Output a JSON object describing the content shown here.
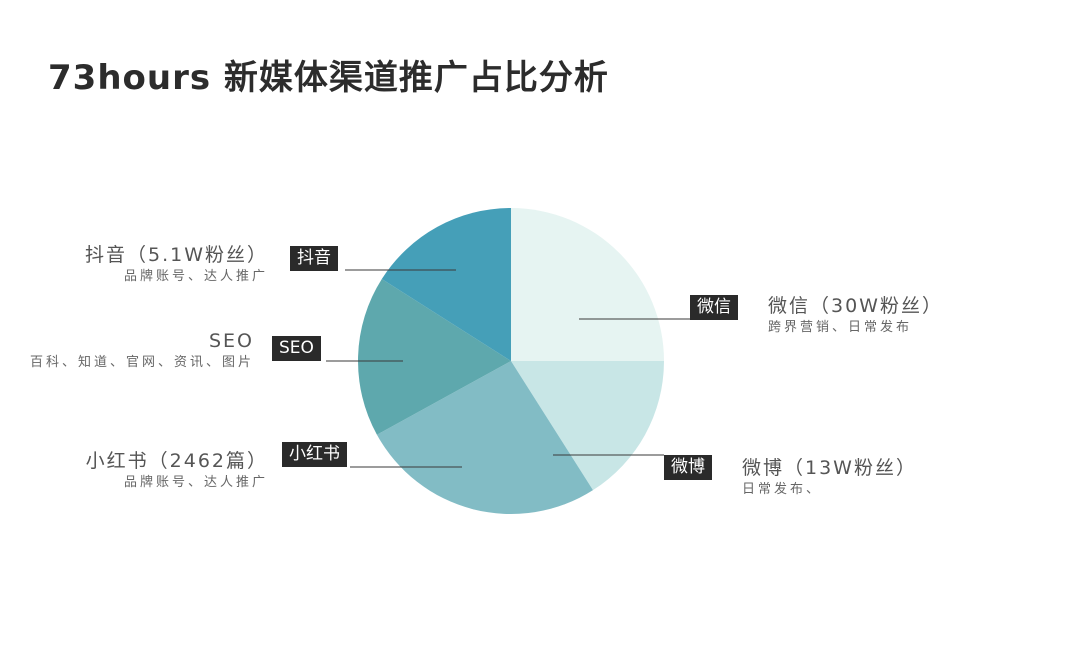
{
  "page": {
    "title": "73hours 新媒体渠道推广占比分析"
  },
  "chart_data": {
    "type": "pie",
    "title": "73hours 新媒体渠道推广占比分析",
    "start_angle_deg": 0,
    "direction": "clockwise",
    "slices": [
      {
        "label": "微信",
        "value": 25,
        "color": "#e6f4f2",
        "name": "微信（30W粉丝）",
        "note": "跨界营销、日常发布"
      },
      {
        "label": "微博",
        "value": 16,
        "color": "#c8e6e6",
        "name": "微博（13W粉丝）",
        "note": "日常发布、"
      },
      {
        "label": "小红书",
        "value": 26,
        "color": "#82bcc5",
        "name": "小红书（2462篇）",
        "note": "品牌账号、达人推广"
      },
      {
        "label": "SEO",
        "value": 17,
        "color": "#5ea8ad",
        "name": "SEO",
        "note": "百科、知道、官网、资讯、图片"
      },
      {
        "label": "抖音",
        "value": 16,
        "color": "#459fb8",
        "name": "抖音（5.1W粉丝）",
        "note": "品牌账号、达人推广"
      }
    ]
  }
}
